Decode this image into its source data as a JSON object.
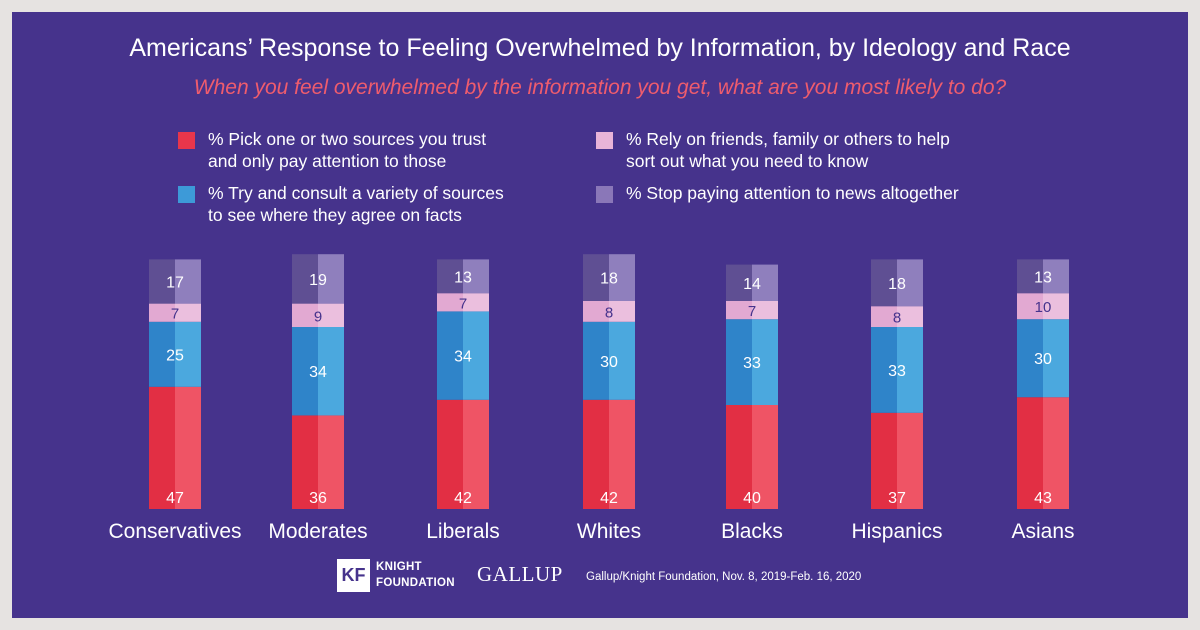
{
  "header": {
    "title": "Americans’ Response to Feeling Overwhelmed by Information, by Ideology and Race",
    "subtitle": "When you feel overwhelmed by the information you get, what are you most likely to do?"
  },
  "legend": {
    "items": [
      {
        "line1": "% Pick one or two sources you trust",
        "line2": "and only pay attention to those",
        "color": "#e8364b"
      },
      {
        "line1": "% Try and consult a variety of sources",
        "line2": "to see where they agree on facts",
        "color": "#3d9ad8"
      },
      {
        "line1": "% Rely on friends, family or others to help",
        "line2": "sort out what you need to know",
        "color": "#e8b4d8"
      },
      {
        "line1": "% Stop paying attention to news altogether",
        "line2": "",
        "color": "#8a77b8"
      }
    ]
  },
  "chart_data": {
    "type": "bar",
    "stacked": true,
    "categories": [
      "Conservatives",
      "Moderates",
      "Liberals",
      "Whites",
      "Blacks",
      "Hispanics",
      "Asians"
    ],
    "series": [
      {
        "name": "% Pick one or two sources you trust and only pay attention to those",
        "values": [
          47,
          36,
          42,
          42,
          40,
          37,
          43
        ],
        "colors": [
          "#e22f44",
          "#ef5465"
        ],
        "label_color": "#ffffff"
      },
      {
        "name": "% Try and consult a variety of sources to see where they agree on facts",
        "values": [
          25,
          34,
          34,
          30,
          33,
          33,
          30
        ],
        "colors": [
          "#2f84c9",
          "#4ba8de"
        ],
        "label_color": "#ffffff"
      },
      {
        "name": "% Rely on friends, family or others to help sort out what you need to know",
        "values": [
          7,
          9,
          7,
          8,
          7,
          8,
          10
        ],
        "colors": [
          "#e2a9d2",
          "#ebbfde"
        ],
        "label_color": "#46338c"
      },
      {
        "name": "% Stop paying attention to news altogether",
        "values": [
          17,
          19,
          13,
          18,
          14,
          18,
          13
        ],
        "colors": [
          "#5f4f93",
          "#8f7fbd"
        ],
        "label_color": "#ffffff"
      }
    ]
  },
  "footer": {
    "kf_mark": "KF",
    "kf_line1": "KNIGHT",
    "kf_line2": "FOUNDATION",
    "gallup": "GALLUP",
    "source": "Gallup/Knight Foundation, Nov. 8, 2019-Feb. 16, 2020"
  }
}
